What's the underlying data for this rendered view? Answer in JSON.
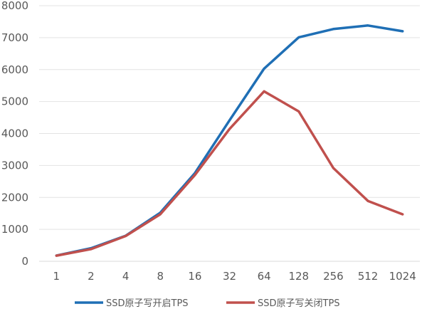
{
  "chart_data": {
    "type": "line",
    "categories": [
      "1",
      "2",
      "4",
      "8",
      "16",
      "32",
      "64",
      "128",
      "256",
      "512",
      "1024"
    ],
    "series": [
      {
        "name": "SSD原子写开启TPS",
        "color": "#1F6FB5",
        "values": [
          180,
          410,
          800,
          1520,
          2760,
          4410,
          6030,
          7010,
          7270,
          7380,
          7200
        ]
      },
      {
        "name": "SSD原子写关闭TPS",
        "color": "#C0504D",
        "values": [
          175,
          380,
          790,
          1470,
          2700,
          4140,
          5320,
          4690,
          2920,
          1890,
          1470
        ]
      }
    ],
    "ylim": [
      0,
      8000
    ],
    "yticks": [
      0,
      1000,
      2000,
      3000,
      4000,
      5000,
      6000,
      7000,
      8000
    ],
    "grid": true,
    "legend": "bottom",
    "title": "",
    "xlabel": "",
    "ylabel": ""
  }
}
